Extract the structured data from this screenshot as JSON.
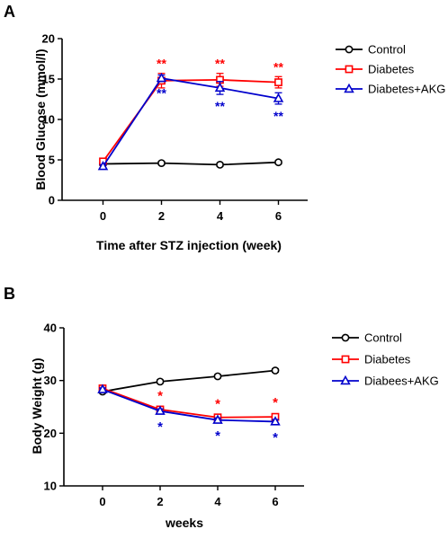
{
  "chart_data": [
    {
      "panel_label": "A",
      "type": "line",
      "xlabel": "Time after STZ injection (week)",
      "ylabel": "Blood Glucose (mmol/l)",
      "x": [
        0,
        2,
        4,
        6
      ],
      "xticks": [
        "0",
        "2",
        "4",
        "6"
      ],
      "xlim": [
        -1,
        7
      ],
      "ylim": [
        0,
        20
      ],
      "yticks": [
        "0",
        "5",
        "10",
        "15",
        "20"
      ],
      "legend_position": "right",
      "series": [
        {
          "name": "Control",
          "color": "#000000",
          "marker": "circle",
          "values": [
            4.5,
            4.6,
            4.4,
            4.7
          ],
          "errors": [
            0.2,
            0.2,
            0.2,
            0.2
          ],
          "annotations": [
            "",
            "",
            "",
            ""
          ]
        },
        {
          "name": "Diabetes",
          "color": "#ff0000",
          "marker": "square",
          "values": [
            4.8,
            14.8,
            14.9,
            14.6
          ],
          "errors": [
            0.3,
            0.9,
            0.8,
            0.7
          ],
          "annotations": [
            "",
            "**",
            "**",
            "**"
          ]
        },
        {
          "name": "Diabetes+AKG",
          "color": "#0000cc",
          "marker": "triangle",
          "values": [
            4.2,
            15.1,
            13.9,
            12.6
          ],
          "errors": [
            0.2,
            0.4,
            0.8,
            0.7
          ],
          "annotations": [
            "",
            "**",
            "**",
            "**"
          ]
        }
      ]
    },
    {
      "panel_label": "B",
      "type": "line",
      "xlabel": "weeks",
      "ylabel": "Body Weight (g)",
      "x": [
        0,
        2,
        4,
        6
      ],
      "xticks": [
        "0",
        "2",
        "4",
        "6"
      ],
      "xlim": [
        -1,
        7
      ],
      "ylim": [
        10,
        40
      ],
      "yticks": [
        "10",
        "20",
        "30",
        "40"
      ],
      "legend_position": "right",
      "series": [
        {
          "name": "Control",
          "color": "#000000",
          "marker": "circle",
          "values": [
            27.9,
            29.8,
            30.8,
            31.9
          ],
          "errors": [
            0.3,
            0.3,
            0.3,
            0.3
          ],
          "annotations": [
            "",
            "",
            "",
            ""
          ]
        },
        {
          "name": "Diabetes",
          "color": "#ff0000",
          "marker": "square",
          "values": [
            28.5,
            24.5,
            23.0,
            23.1
          ],
          "errors": [
            0.3,
            0.4,
            0.4,
            0.5
          ],
          "annotations": [
            "",
            "*",
            "*",
            "*"
          ]
        },
        {
          "name": "Diabees+AKG",
          "color": "#0000cc",
          "marker": "triangle",
          "values": [
            28.3,
            24.2,
            22.5,
            22.2
          ],
          "errors": [
            0.3,
            0.4,
            0.4,
            0.4
          ],
          "annotations": [
            "",
            "*",
            "*",
            "*"
          ]
        }
      ]
    }
  ]
}
